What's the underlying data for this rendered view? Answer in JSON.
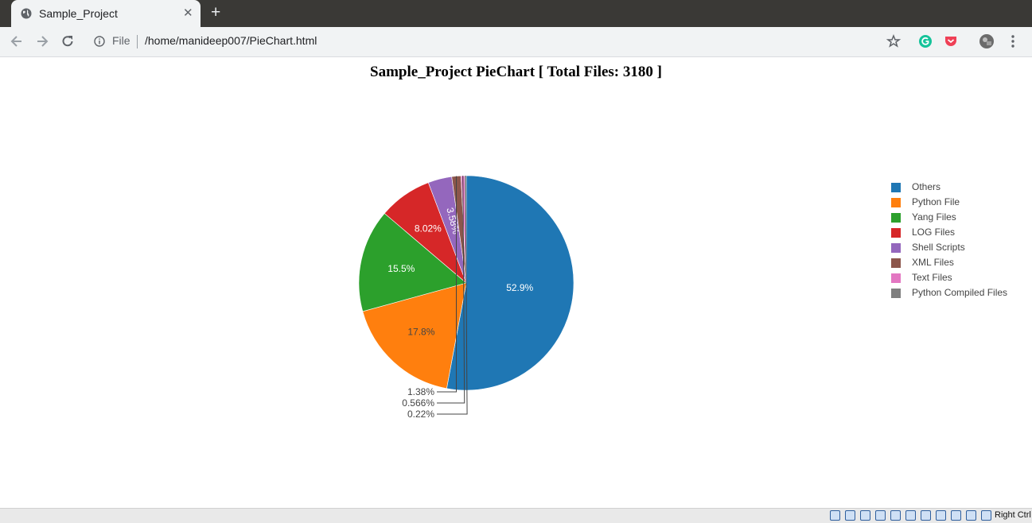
{
  "browser": {
    "tab_title": "Sample_Project",
    "url_scheme": "File",
    "url": "/home/manideep007/PieChart.html"
  },
  "statusbar": {
    "host_key": "Right Ctrl"
  },
  "chart_data": {
    "type": "pie",
    "title": "Sample_Project PieChart [ Total Files: 3180 ]",
    "slices": [
      {
        "label": "Others",
        "percent": 52.9,
        "text": "52.9%",
        "color": "#1f77b4"
      },
      {
        "label": "Python File",
        "percent": 17.8,
        "text": "17.8%",
        "color": "#ff7f0e"
      },
      {
        "label": "Yang Files",
        "percent": 15.5,
        "text": "15.5%",
        "color": "#2ca02c"
      },
      {
        "label": "LOG Files",
        "percent": 8.02,
        "text": "8.02%",
        "color": "#d62728"
      },
      {
        "label": "Shell Scripts",
        "percent": 3.58,
        "text": "3.58%",
        "color": "#9467bd"
      },
      {
        "label": "XML Files",
        "percent": 1.38,
        "text": "1.38%",
        "color": "#8c564b"
      },
      {
        "label": "Text Files",
        "percent": 0.566,
        "text": "0.566%",
        "color": "#e377c2"
      },
      {
        "label": "Python Compiled Files",
        "percent": 0.22,
        "text": "0.22%",
        "color": "#7f7f7f"
      }
    ],
    "legend_position": "right"
  }
}
